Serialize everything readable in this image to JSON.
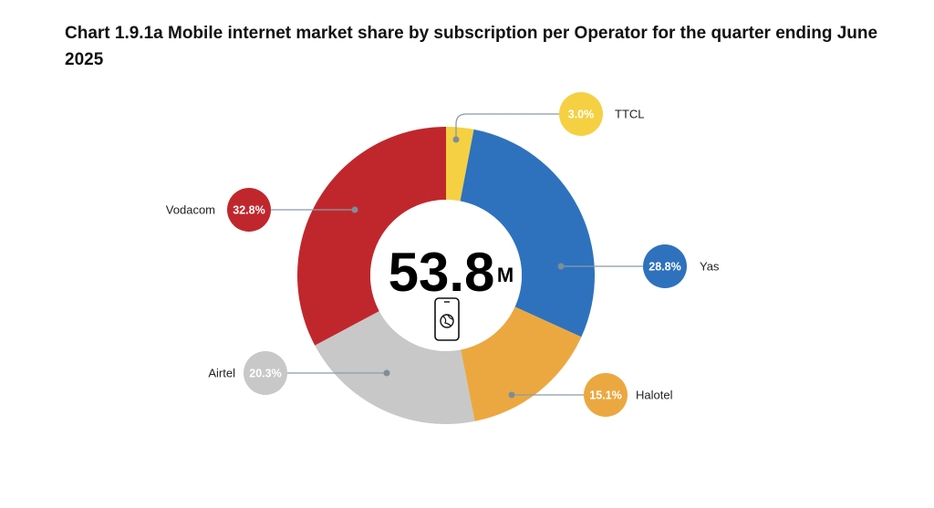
{
  "chart_data": {
    "type": "pie",
    "title": "Chart 1.9.1a Mobile internet market share by subscription per Operator for the quarter ending June 2025",
    "center": {
      "value": "53.8",
      "unit": "M",
      "icon": "smartphone-globe-icon"
    },
    "slices": [
      {
        "name": "TTCL",
        "value": 3.0,
        "label": "3.0%",
        "color": "#F5D042"
      },
      {
        "name": "Yas",
        "value": 28.8,
        "label": "28.8%",
        "color": "#2E72BD"
      },
      {
        "name": "Halotel",
        "value": 15.1,
        "label": "15.1%",
        "color": "#EBA840"
      },
      {
        "name": "Airtel",
        "value": 20.3,
        "label": "20.3%",
        "color": "#C8C8C8"
      },
      {
        "name": "Vodacom",
        "value": 32.8,
        "label": "32.8%",
        "color": "#C0272D"
      }
    ]
  }
}
